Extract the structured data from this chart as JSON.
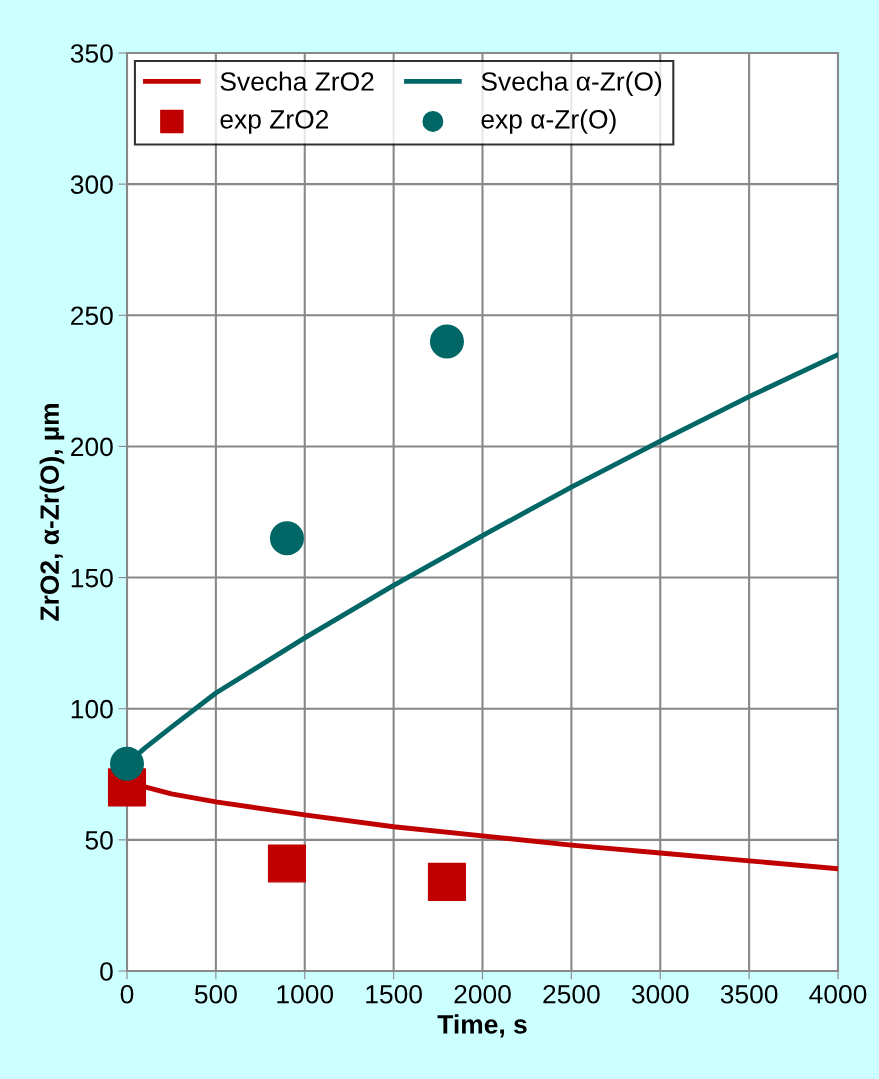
{
  "chart_data": {
    "type": "line",
    "xlabel": "Time, s",
    "ylabel": "ZrO2, α-Zr(O), µm",
    "xlim": [
      0,
      4000
    ],
    "ylim": [
      0,
      350
    ],
    "xticks": [
      0,
      500,
      1000,
      1500,
      2000,
      2500,
      3000,
      3500,
      4000
    ],
    "yticks": [
      0,
      50,
      100,
      150,
      200,
      250,
      300,
      350
    ],
    "grid": true,
    "legend": "top left",
    "series": [
      {
        "name": "Svecha ZrO2",
        "color": "#c00000",
        "marker": "none",
        "x": [
          0,
          250,
          500,
          1000,
          1500,
          2000,
          2500,
          3000,
          3500,
          4000
        ],
        "values": [
          72,
          67.5,
          64.5,
          59.5,
          55,
          51.5,
          48,
          45,
          42,
          39
        ]
      },
      {
        "name": "Svecha α-Zr(O)",
        "color": "#006666",
        "marker": "none",
        "x": [
          0,
          100,
          250,
          500,
          1000,
          1500,
          2000,
          2500,
          3000,
          3500,
          4000
        ],
        "values": [
          79,
          85,
          93,
          106,
          127,
          147,
          166,
          184.5,
          202,
          219,
          235
        ]
      },
      {
        "name": "exp ZrO2",
        "type": "scatter",
        "color": "#c00000",
        "marker": "square",
        "x": [
          0,
          900,
          1800
        ],
        "values": [
          70,
          41,
          34
        ]
      },
      {
        "name": "exp α-Zr(O)",
        "type": "scatter",
        "color": "#006666",
        "marker": "circle",
        "x": [
          0,
          900,
          1800
        ],
        "values": [
          79,
          165,
          240
        ]
      }
    ]
  }
}
